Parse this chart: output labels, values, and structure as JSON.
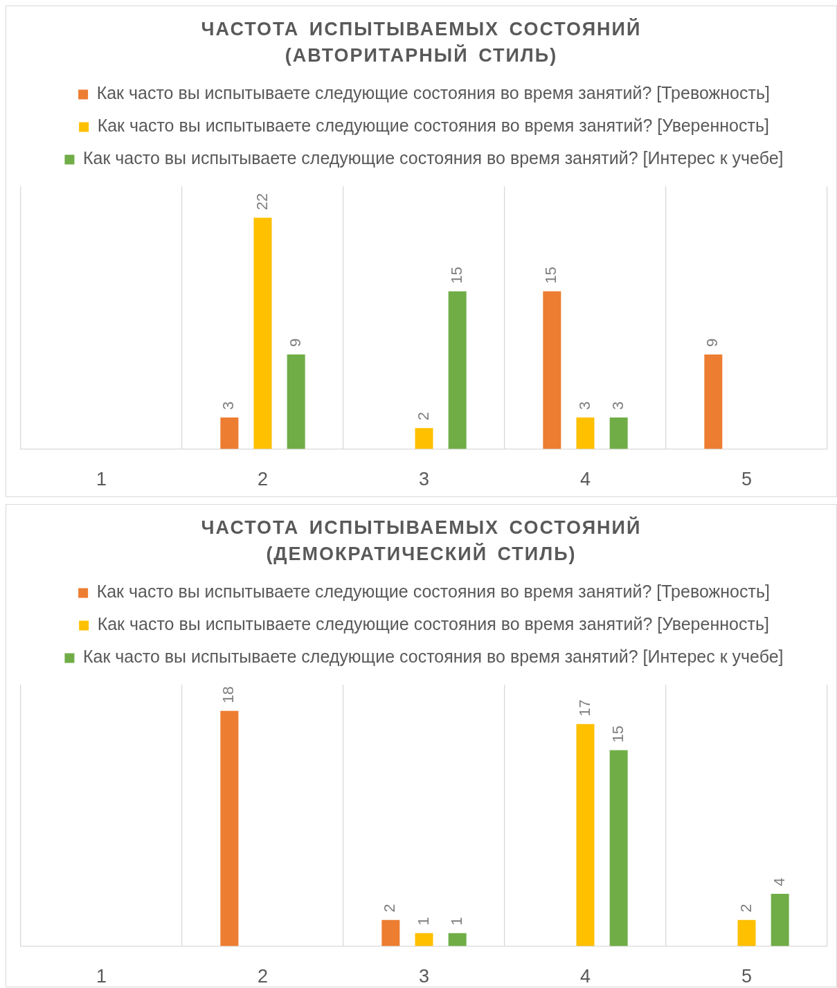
{
  "chart_data": [
    {
      "type": "bar",
      "title": "ЧАСТОТА ИСПЫТЫВАЕМЫХ СОСТОЯНИЙ (АВТОРИТАРНЫЙ СТИЛЬ)",
      "categories": [
        "1",
        "2",
        "3",
        "4",
        "5"
      ],
      "series": [
        {
          "name": "Как часто вы испытываете следующие состояния во время занятий? [Тревожность]",
          "color": "#ed7d31",
          "values": [
            null,
            3,
            null,
            15,
            9
          ]
        },
        {
          "name": "Как часто вы испытываете следующие состояния во время занятий? [Уверенность]",
          "color": "#ffc000",
          "values": [
            null,
            22,
            2,
            3,
            null
          ]
        },
        {
          "name": "Как часто вы испытываете следующие состояния во время занятий? [Интерес к учебе]",
          "color": "#70ad47",
          "values": [
            null,
            9,
            15,
            3,
            null
          ]
        }
      ],
      "ylim": [
        0,
        25
      ],
      "data_labels": true,
      "grid": "x",
      "legend": "top",
      "tick_labels": "x"
    },
    {
      "type": "bar",
      "title": "ЧАСТОТА ИСПЫТЫВАЕМЫХ СОСТОЯНИЙ (ДЕМОКРАТИЧЕСКИЙ СТИЛЬ)",
      "categories": [
        "1",
        "2",
        "3",
        "4",
        "5"
      ],
      "series": [
        {
          "name": "Как часто вы испытываете следующие состояния во время занятий? [Тревожность]",
          "color": "#ed7d31",
          "values": [
            null,
            18,
            2,
            null,
            null
          ]
        },
        {
          "name": "Как часто вы испытываете следующие состояния во время занятий? [Уверенность]",
          "color": "#ffc000",
          "values": [
            null,
            null,
            1,
            17,
            2
          ]
        },
        {
          "name": "Как часто вы испытываете следующие состояния во время занятий? [Интерес к учебе]",
          "color": "#70ad47",
          "values": [
            null,
            null,
            1,
            15,
            4
          ]
        }
      ],
      "ylim": [
        0,
        20
      ],
      "data_labels": true,
      "grid": "x",
      "legend": "top",
      "tick_labels": "x"
    }
  ]
}
